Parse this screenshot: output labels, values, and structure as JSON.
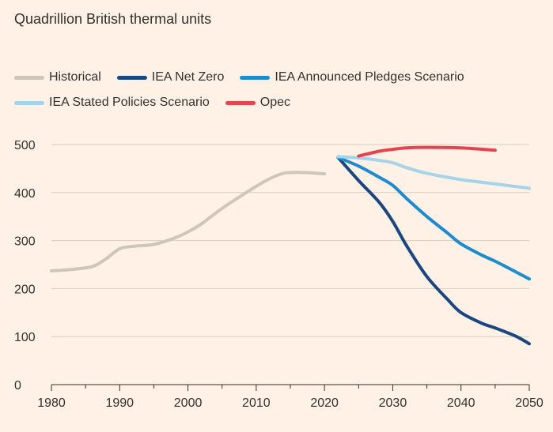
{
  "chart_data": {
    "type": "line",
    "title": "",
    "subtitle": "Quadrillion British thermal units",
    "xlabel": "",
    "ylabel": "",
    "xlim": [
      1980,
      2050
    ],
    "ylim": [
      0,
      500
    ],
    "x_ticks": [
      1980,
      1990,
      2000,
      2010,
      2020,
      2030,
      2040,
      2050
    ],
    "y_ticks": [
      0,
      100,
      200,
      300,
      400,
      500
    ],
    "grid": "horizontal",
    "legend_position": "top-left",
    "series": [
      {
        "name": "Historical",
        "color": "#CEC6B9",
        "points": [
          [
            1980,
            237
          ],
          [
            1983,
            240
          ],
          [
            1986,
            246
          ],
          [
            1988,
            262
          ],
          [
            1990,
            283
          ],
          [
            1992,
            288
          ],
          [
            1995,
            292
          ],
          [
            1998,
            305
          ],
          [
            2000,
            318
          ],
          [
            2002,
            335
          ],
          [
            2005,
            367
          ],
          [
            2008,
            395
          ],
          [
            2010,
            413
          ],
          [
            2012,
            429
          ],
          [
            2014,
            440
          ],
          [
            2016,
            442
          ],
          [
            2018,
            441
          ],
          [
            2020,
            439
          ]
        ]
      },
      {
        "name": "IEA Net Zero",
        "color": "#1B467F",
        "points": [
          [
            2022,
            473
          ],
          [
            2025,
            425
          ],
          [
            2028,
            380
          ],
          [
            2030,
            340
          ],
          [
            2032,
            290
          ],
          [
            2035,
            225
          ],
          [
            2038,
            178
          ],
          [
            2040,
            150
          ],
          [
            2043,
            128
          ],
          [
            2045,
            118
          ],
          [
            2048,
            101
          ],
          [
            2050,
            85
          ]
        ]
      },
      {
        "name": "IEA Announced Pledges Scenario",
        "color": "#1E8BCD",
        "points": [
          [
            2022,
            473
          ],
          [
            2025,
            455
          ],
          [
            2028,
            432
          ],
          [
            2030,
            415
          ],
          [
            2032,
            388
          ],
          [
            2035,
            350
          ],
          [
            2038,
            316
          ],
          [
            2040,
            293
          ],
          [
            2043,
            270
          ],
          [
            2045,
            257
          ],
          [
            2048,
            235
          ],
          [
            2050,
            220
          ]
        ]
      },
      {
        "name": "IEA Stated Policies Scenario",
        "color": "#A5D3EB",
        "points": [
          [
            2022,
            475
          ],
          [
            2025,
            472
          ],
          [
            2028,
            467
          ],
          [
            2030,
            462
          ],
          [
            2032,
            452
          ],
          [
            2035,
            440
          ],
          [
            2040,
            427
          ],
          [
            2045,
            418
          ],
          [
            2050,
            409
          ]
        ]
      },
      {
        "name": "Opec",
        "color": "#E5434F",
        "points": [
          [
            2025,
            476
          ],
          [
            2028,
            486
          ],
          [
            2030,
            490
          ],
          [
            2032,
            493
          ],
          [
            2035,
            494
          ],
          [
            2040,
            493
          ],
          [
            2045,
            488
          ]
        ]
      }
    ]
  }
}
